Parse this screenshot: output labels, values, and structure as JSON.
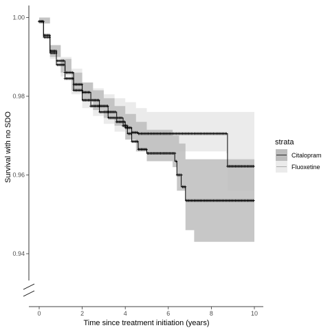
{
  "chart_data": {
    "type": "line",
    "subtype": "kaplan-meier survival curve with 95% confidence bands",
    "title": "",
    "xlabel": "Time since treatment initiation (years)",
    "ylabel": "Survival with no SDO",
    "xlim": [
      -0.5,
      10.5
    ],
    "ylim": [
      0.93,
      1.002
    ],
    "x_ticks": [
      0,
      2,
      4,
      6,
      8,
      10
    ],
    "x_tick_labels": [
      "0",
      "2",
      "4",
      "6",
      "8",
      "10"
    ],
    "y_ticks": [
      0.94,
      0.96,
      0.98,
      1.0
    ],
    "y_tick_labels": [
      "0.94",
      "0.96",
      "0.98",
      "1.00"
    ],
    "y_axis_break": true,
    "grid": false,
    "legend": {
      "title": "strata",
      "placement": "right",
      "entries": [
        "Citalopram",
        "Fluoxetine"
      ]
    },
    "series": [
      {
        "name": "Citalopram",
        "line_color": "#000000",
        "band_color": "#bdbdbd",
        "points": [
          [
            0,
            0.999
          ],
          [
            0.2,
            0.9955
          ],
          [
            0.5,
            0.9915
          ],
          [
            0.8,
            0.989
          ],
          [
            1.2,
            0.986
          ],
          [
            1.6,
            0.983
          ],
          [
            2.0,
            0.981
          ],
          [
            2.4,
            0.979
          ],
          [
            2.8,
            0.9775
          ],
          [
            3.2,
            0.976
          ],
          [
            3.6,
            0.9745
          ],
          [
            3.9,
            0.9725
          ],
          [
            4.1,
            0.9705
          ],
          [
            4.3,
            0.9685
          ],
          [
            4.6,
            0.9665
          ],
          [
            5.0,
            0.9655
          ],
          [
            6.3,
            0.9635
          ],
          [
            6.4,
            0.96
          ],
          [
            6.6,
            0.957
          ],
          [
            6.8,
            0.9535
          ],
          [
            10.0,
            0.9535
          ]
        ],
        "ci_lower": [
          [
            0,
            0.9985
          ],
          [
            0.5,
            0.99
          ],
          [
            1.0,
            0.986
          ],
          [
            1.5,
            0.9815
          ],
          [
            2.0,
            0.979
          ],
          [
            2.5,
            0.9765
          ],
          [
            3.0,
            0.9745
          ],
          [
            3.5,
            0.9725
          ],
          [
            4.0,
            0.969
          ],
          [
            4.5,
            0.966
          ],
          [
            5.0,
            0.9635
          ],
          [
            6.2,
            0.962
          ],
          [
            6.4,
            0.956
          ],
          [
            6.8,
            0.946
          ],
          [
            7.2,
            0.943
          ],
          [
            10.0,
            0.943
          ]
        ],
        "ci_upper": [
          [
            0,
            1.0
          ],
          [
            0.5,
            0.993
          ],
          [
            1.0,
            0.9895
          ],
          [
            1.5,
            0.986
          ],
          [
            2.0,
            0.9835
          ],
          [
            2.5,
            0.9815
          ],
          [
            3.0,
            0.9795
          ],
          [
            3.5,
            0.9775
          ],
          [
            4.0,
            0.9755
          ],
          [
            4.5,
            0.9735
          ],
          [
            5.0,
            0.9715
          ],
          [
            6.2,
            0.97
          ],
          [
            6.5,
            0.968
          ],
          [
            6.8,
            0.964
          ],
          [
            10.0,
            0.964
          ]
        ]
      },
      {
        "name": "Fluoxetine",
        "line_color": "#000000",
        "band_color": "#e8e8e8",
        "points": [
          [
            0,
            0.999
          ],
          [
            0.2,
            0.995
          ],
          [
            0.5,
            0.991
          ],
          [
            0.8,
            0.988
          ],
          [
            1.2,
            0.9845
          ],
          [
            1.6,
            0.9815
          ],
          [
            2.0,
            0.979
          ],
          [
            2.4,
            0.9775
          ],
          [
            2.8,
            0.976
          ],
          [
            3.2,
            0.9745
          ],
          [
            3.6,
            0.9735
          ],
          [
            4.0,
            0.972
          ],
          [
            4.3,
            0.9708
          ],
          [
            4.6,
            0.9705
          ],
          [
            8.7,
            0.9705
          ],
          [
            8.75,
            0.9622
          ],
          [
            10.0,
            0.9622
          ]
        ],
        "ci_lower": [
          [
            0,
            0.9985
          ],
          [
            0.5,
            0.9895
          ],
          [
            1.0,
            0.985
          ],
          [
            1.5,
            0.9805
          ],
          [
            2.0,
            0.977
          ],
          [
            2.5,
            0.975
          ],
          [
            3.0,
            0.973
          ],
          [
            3.5,
            0.971
          ],
          [
            4.0,
            0.969
          ],
          [
            4.5,
            0.967
          ],
          [
            5.0,
            0.966
          ],
          [
            8.7,
            0.9655
          ],
          [
            8.75,
            0.956
          ],
          [
            10.0,
            0.956
          ]
        ],
        "ci_upper": [
          [
            0,
            1.0
          ],
          [
            0.5,
            0.993
          ],
          [
            1.0,
            0.99
          ],
          [
            1.5,
            0.987
          ],
          [
            2.0,
            0.9835
          ],
          [
            2.5,
            0.982
          ],
          [
            3.0,
            0.9805
          ],
          [
            3.5,
            0.9795
          ],
          [
            4.0,
            0.9785
          ],
          [
            4.5,
            0.977
          ],
          [
            5.0,
            0.976
          ],
          [
            8.7,
            0.976
          ],
          [
            8.75,
            0.976
          ],
          [
            10.0,
            0.976
          ]
        ]
      }
    ]
  }
}
